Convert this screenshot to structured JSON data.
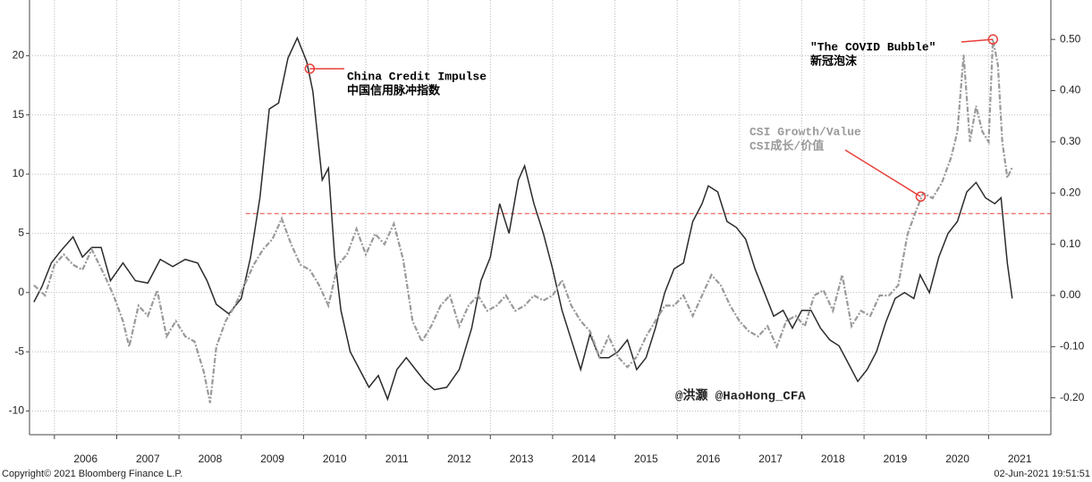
{
  "chart_data": {
    "type": "line",
    "xlim": [
      2005.6,
      2022.0
    ],
    "xticks": [
      2006,
      2007,
      2008,
      2009,
      2010,
      2011,
      2012,
      2013,
      2014,
      2015,
      2016,
      2017,
      2018,
      2019,
      2020,
      2021
    ],
    "ylim": [
      -12,
      24.7
    ],
    "yticks": [
      -10,
      -5,
      0,
      5,
      10,
      15,
      20
    ],
    "y2lim": [
      -0.272,
      0.577
    ],
    "y2ticks": [
      {
        "value": -0.2,
        "label": "-0.20"
      },
      {
        "value": -0.1,
        "label": "-0.10"
      },
      {
        "value": 0,
        "label": "0.00"
      },
      {
        "value": 0.1,
        "label": "0.10"
      },
      {
        "value": 0.2,
        "label": "0.20"
      },
      {
        "value": 0.3,
        "label": "0.30"
      },
      {
        "value": 0.4,
        "label": "0.40"
      },
      {
        "value": 0.5,
        "label": "0.50"
      }
    ],
    "grid": true,
    "reference_line": {
      "value": 0.16,
      "axis": "y2",
      "color": "#e8403a"
    },
    "series": [
      {
        "name": "China Credit Impulse",
        "color": "#2b2b2b",
        "dash": false,
        "x": [
          2005.67,
          2005.8,
          2005.95,
          2006.1,
          2006.3,
          2006.45,
          2006.6,
          2006.75,
          2006.9,
          2007.1,
          2007.3,
          2007.5,
          2007.7,
          2007.9,
          2008.1,
          2008.3,
          2008.45,
          2008.6,
          2008.8,
          2009.0,
          2009.15,
          2009.3,
          2009.45,
          2009.6,
          2009.75,
          2009.9,
          2010.05,
          2010.15,
          2010.3,
          2010.4,
          2010.5,
          2010.6,
          2010.75,
          2010.9,
          2011.05,
          2011.2,
          2011.35,
          2011.5,
          2011.65,
          2011.8,
          2011.95,
          2012.1,
          2012.3,
          2012.5,
          2012.7,
          2012.85,
          2013.0,
          2013.15,
          2013.3,
          2013.45,
          2013.55,
          2013.7,
          2013.85,
          2014.0,
          2014.15,
          2014.3,
          2014.45,
          2014.6,
          2014.75,
          2014.9,
          2015.05,
          2015.2,
          2015.35,
          2015.5,
          2015.65,
          2015.8,
          2015.95,
          2016.1,
          2016.25,
          2016.4,
          2016.5,
          2016.65,
          2016.8,
          2016.95,
          2017.1,
          2017.25,
          2017.4,
          2017.55,
          2017.7,
          2017.85,
          2018.0,
          2018.15,
          2018.3,
          2018.45,
          2018.6,
          2018.75,
          2018.9,
          2019.05,
          2019.2,
          2019.35,
          2019.5,
          2019.65,
          2019.8,
          2019.9,
          2020.05,
          2020.2,
          2020.35,
          2020.5,
          2020.65,
          2020.8,
          2020.95,
          2021.1,
          2021.2,
          2021.3,
          2021.38
        ],
        "values": [
          -0.8,
          0.5,
          2.5,
          3.5,
          4.7,
          3.0,
          3.8,
          3.8,
          1.0,
          2.5,
          1.0,
          0.8,
          2.8,
          2.2,
          2.8,
          2.5,
          1.0,
          -1.0,
          -1.8,
          -0.5,
          3,
          8,
          15.5,
          16,
          19.8,
          21.5,
          19.5,
          17.0,
          9.5,
          10.5,
          3,
          -1.5,
          -5,
          -6.5,
          -8,
          -7,
          -9,
          -6.5,
          -5.5,
          -6.5,
          -7.5,
          -8.2,
          -8.0,
          -6.5,
          -3,
          1,
          3,
          7.5,
          5,
          9.5,
          10.7,
          7.5,
          5,
          2,
          -1.5,
          -4,
          -6.5,
          -3.5,
          -5.5,
          -5.5,
          -5,
          -4,
          -6.5,
          -5.5,
          -3,
          0,
          2,
          2.5,
          6,
          7.5,
          9,
          8.5,
          6,
          5.5,
          4.5,
          2.0,
          0,
          -2,
          -1.5,
          -3.0,
          -1.5,
          -1.5,
          -3.0,
          -4.0,
          -4.5,
          -6,
          -7.5,
          -6.5,
          -5,
          -2.5,
          -0.5,
          0,
          -0.5,
          1.5,
          0,
          3,
          5,
          6,
          8.5,
          9.3,
          8,
          7.5,
          8,
          2.5,
          -0.5
        ]
      },
      {
        "name": "CSI Growth/Value",
        "color": "#9a9a9a",
        "dash": true,
        "axis": "y2",
        "x": [
          2005.67,
          2005.85,
          2006.0,
          2006.15,
          2006.3,
          2006.45,
          2006.6,
          2006.8,
          2006.95,
          2007.1,
          2007.2,
          2007.35,
          2007.5,
          2007.65,
          2007.8,
          2007.95,
          2008.1,
          2008.25,
          2008.4,
          2008.5,
          2008.6,
          2008.75,
          2008.9,
          2009.05,
          2009.2,
          2009.35,
          2009.5,
          2009.65,
          2009.8,
          2009.95,
          2010.1,
          2010.25,
          2010.4,
          2010.55,
          2010.7,
          2010.85,
          2011.0,
          2011.15,
          2011.3,
          2011.45,
          2011.6,
          2011.75,
          2011.9,
          2012.05,
          2012.2,
          2012.35,
          2012.5,
          2012.65,
          2012.8,
          2012.95,
          2013.1,
          2013.25,
          2013.4,
          2013.55,
          2013.7,
          2013.85,
          2014.0,
          2014.15,
          2014.3,
          2014.45,
          2014.6,
          2014.75,
          2014.9,
          2015.05,
          2015.2,
          2015.35,
          2015.5,
          2015.65,
          2015.8,
          2015.95,
          2016.1,
          2016.25,
          2016.4,
          2016.55,
          2016.7,
          2016.85,
          2017.0,
          2017.15,
          2017.3,
          2017.45,
          2017.6,
          2017.75,
          2017.9,
          2018.05,
          2018.2,
          2018.35,
          2018.5,
          2018.65,
          2018.8,
          2018.95,
          2019.1,
          2019.25,
          2019.4,
          2019.55,
          2019.7,
          2019.85,
          2019.95,
          2020.1,
          2020.25,
          2020.4,
          2020.5,
          2020.6,
          2020.7,
          2020.8,
          2020.9,
          2021.0,
          2021.07,
          2021.15,
          2021.22,
          2021.3,
          2021.38
        ],
        "values": [
          0.02,
          0.0,
          0.06,
          0.08,
          0.06,
          0.05,
          0.09,
          0.04,
          0.0,
          -0.05,
          -0.1,
          -0.02,
          -0.04,
          0.01,
          -0.08,
          -0.05,
          -0.08,
          -0.09,
          -0.15,
          -0.21,
          -0.1,
          -0.05,
          -0.02,
          0.02,
          0.06,
          0.09,
          0.11,
          0.15,
          0.1,
          0.06,
          0.05,
          0.02,
          -0.02,
          0.06,
          0.08,
          0.13,
          0.08,
          0.12,
          0.1,
          0.14,
          0.07,
          -0.05,
          -0.09,
          -0.06,
          -0.02,
          0.0,
          -0.06,
          -0.02,
          0.0,
          -0.03,
          -0.02,
          0.0,
          -0.03,
          -0.02,
          0.0,
          -0.01,
          0.0,
          0.03,
          -0.02,
          -0.05,
          -0.07,
          -0.12,
          -0.08,
          -0.12,
          -0.14,
          -0.12,
          -0.08,
          -0.05,
          -0.02,
          -0.02,
          0.0,
          -0.04,
          0.0,
          0.04,
          0.02,
          -0.02,
          -0.05,
          -0.07,
          -0.08,
          -0.06,
          -0.1,
          -0.05,
          -0.04,
          -0.06,
          0.0,
          0.01,
          -0.03,
          0.04,
          -0.06,
          -0.03,
          -0.04,
          0.0,
          0.0,
          0.02,
          0.12,
          0.17,
          0.2,
          0.19,
          0.22,
          0.27,
          0.32,
          0.47,
          0.3,
          0.37,
          0.32,
          0.3,
          0.5,
          0.45,
          0.3,
          0.23,
          0.25
        ]
      }
    ],
    "annotations": [
      {
        "text": "China Credit Impulse",
        "text_cn": "中国信用脉冲指数",
        "x": 2010.1,
        "y": 18.9,
        "color": "#000000"
      },
      {
        "text": "CSI Growth/Value",
        "text_cn": "CSI成长/价值",
        "x": 2019.91,
        "y": 0.193,
        "axis": "y2",
        "color": "#9a9a9a"
      },
      {
        "text": "\"The COVID Bubble\"",
        "text_cn": "新冠泡沫",
        "x": 2021.07,
        "y": 0.5,
        "axis": "y2",
        "color": "#000000"
      }
    ],
    "watermark": "@洪灏 @HaoHong_CFA",
    "footer_left": "Copyright© 2021 Bloomberg Finance L.P.",
    "footer_right": "02-Jun-2021 19:51:51"
  }
}
